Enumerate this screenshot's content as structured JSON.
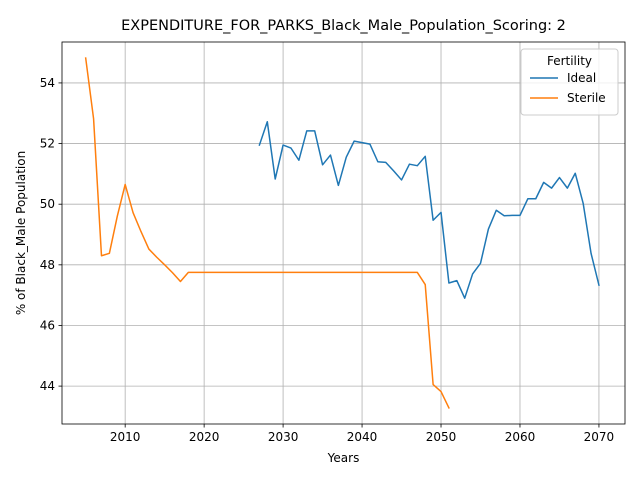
{
  "chart_data": {
    "type": "line",
    "title": "EXPENDITURE_FOR_PARKS_Black_Male_Population_Scoring: 2",
    "xlabel": "Years",
    "ylabel": "% of Black_Male Population",
    "xlim": [
      2002,
      2073.3
    ],
    "ylim": [
      42.75,
      55.35
    ],
    "xticks": [
      2010,
      2020,
      2030,
      2040,
      2050,
      2060,
      2070
    ],
    "yticks": [
      44,
      46,
      48,
      50,
      52,
      54
    ],
    "grid": true,
    "legend": {
      "title": "Fertility",
      "placement": "top-right"
    },
    "series": [
      {
        "name": "Ideal",
        "color": "#1f77b4",
        "points": [
          [
            2027,
            51.95
          ],
          [
            2028,
            52.72
          ],
          [
            2029,
            50.83
          ],
          [
            2030,
            51.95
          ],
          [
            2031,
            51.85
          ],
          [
            2032,
            51.45
          ],
          [
            2033,
            52.42
          ],
          [
            2034,
            52.42
          ],
          [
            2035,
            51.3
          ],
          [
            2036,
            51.62
          ],
          [
            2037,
            50.62
          ],
          [
            2038,
            51.55
          ],
          [
            2039,
            52.08
          ],
          [
            2040,
            52.03
          ],
          [
            2041,
            51.98
          ],
          [
            2042,
            51.4
          ],
          [
            2043,
            51.38
          ],
          [
            2044,
            51.1
          ],
          [
            2045,
            50.8
          ],
          [
            2046,
            51.32
          ],
          [
            2047,
            51.27
          ],
          [
            2048,
            51.58
          ],
          [
            2049,
            49.47
          ],
          [
            2050,
            49.73
          ],
          [
            2051,
            47.4
          ],
          [
            2052,
            47.48
          ],
          [
            2053,
            46.9
          ],
          [
            2054,
            47.7
          ],
          [
            2055,
            48.05
          ],
          [
            2056,
            49.18
          ],
          [
            2057,
            49.8
          ],
          [
            2058,
            49.62
          ],
          [
            2059,
            49.63
          ],
          [
            2060,
            49.63
          ],
          [
            2061,
            50.18
          ],
          [
            2062,
            50.18
          ],
          [
            2063,
            50.72
          ],
          [
            2064,
            50.53
          ],
          [
            2065,
            50.88
          ],
          [
            2066,
            50.53
          ],
          [
            2067,
            51.02
          ],
          [
            2068,
            50.03
          ],
          [
            2069,
            48.38
          ],
          [
            2070,
            47.33
          ]
        ]
      },
      {
        "name": "Sterile",
        "color": "#ff7f0e",
        "points": [
          [
            2005,
            54.82
          ],
          [
            2006,
            52.82
          ],
          [
            2007,
            48.3
          ],
          [
            2008,
            48.38
          ],
          [
            2009,
            49.6
          ],
          [
            2010,
            50.65
          ],
          [
            2011,
            49.72
          ],
          [
            2012,
            49.1
          ],
          [
            2013,
            48.52
          ],
          [
            2014,
            48.25
          ],
          [
            2015,
            48.0
          ],
          [
            2016,
            47.74
          ],
          [
            2017,
            47.45
          ],
          [
            2018,
            47.75
          ],
          [
            2019,
            47.75
          ],
          [
            2020,
            47.75
          ],
          [
            2025,
            47.75
          ],
          [
            2030,
            47.75
          ],
          [
            2035,
            47.75
          ],
          [
            2040,
            47.75
          ],
          [
            2045,
            47.75
          ],
          [
            2046,
            47.75
          ],
          [
            2047,
            47.75
          ],
          [
            2048,
            47.35
          ],
          [
            2049,
            44.05
          ],
          [
            2050,
            43.82
          ],
          [
            2051,
            43.28
          ]
        ]
      }
    ]
  }
}
